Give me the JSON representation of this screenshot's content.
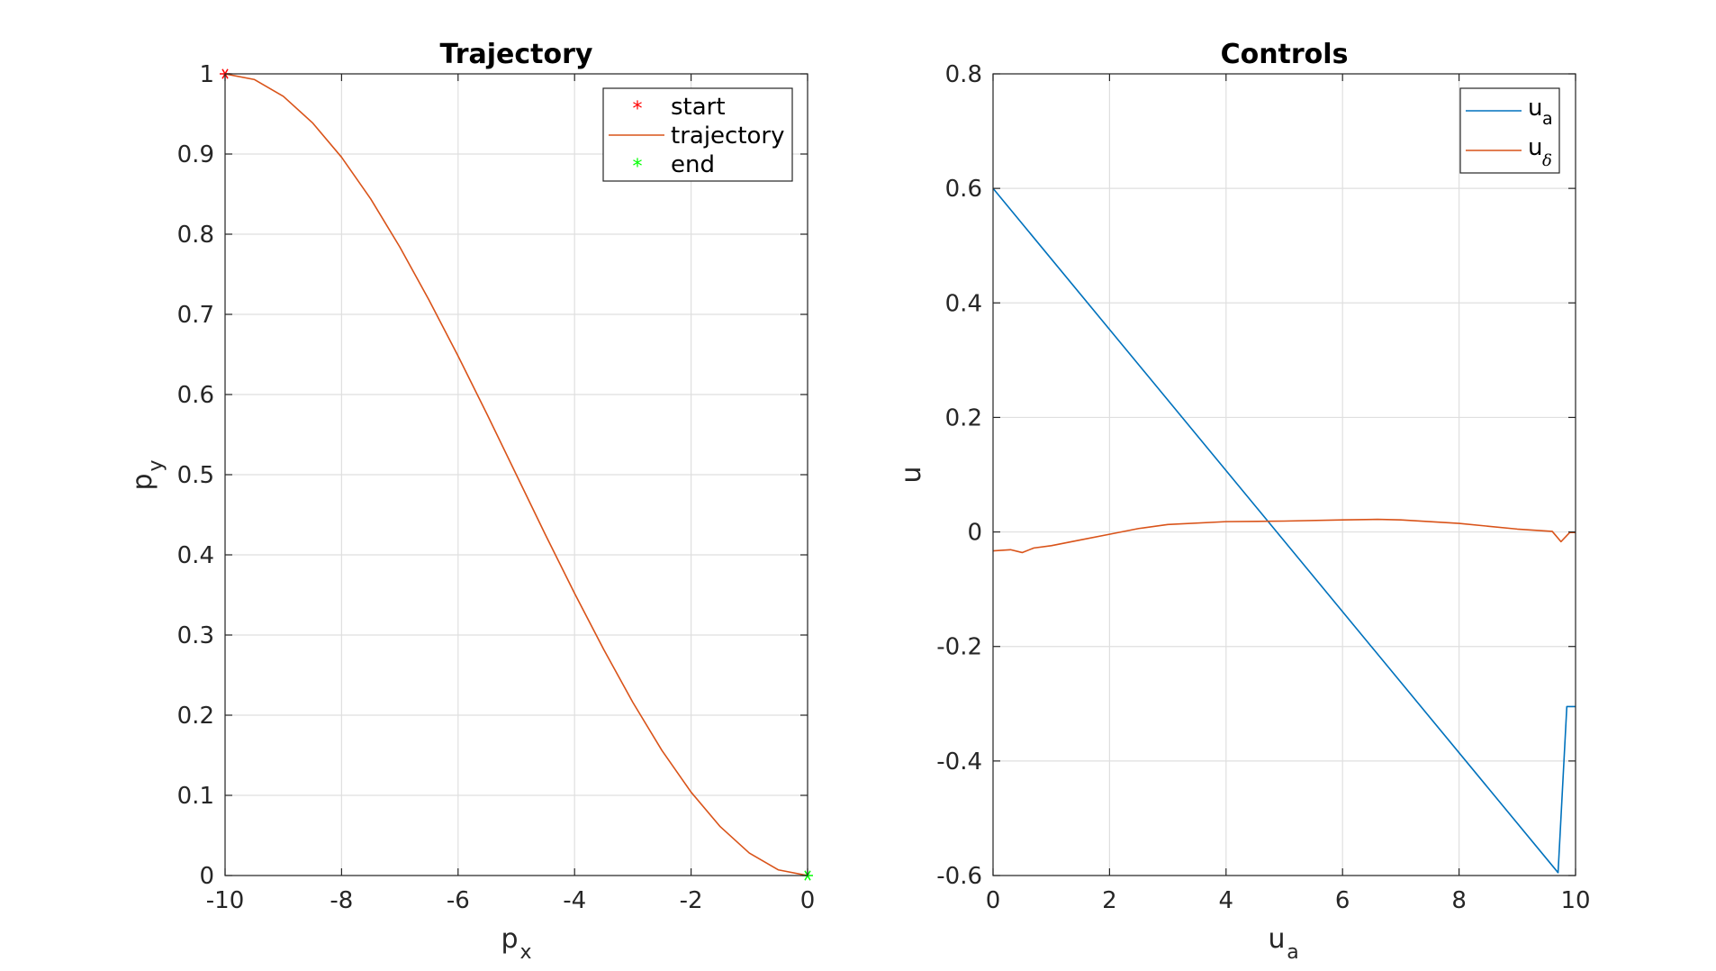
{
  "colors": {
    "blue": "#0072BD",
    "orange": "#D95319",
    "red": "#FF0000",
    "green": "#00FF00"
  },
  "chart_data": [
    {
      "type": "line",
      "title": "Trajectory",
      "xlabel": {
        "base": "p",
        "sub": "x"
      },
      "ylabel": {
        "base": "p",
        "sub": "y"
      },
      "xlim": [
        -10,
        0
      ],
      "ylim": [
        0,
        1
      ],
      "xticks": [
        "-10",
        "-8",
        "-6",
        "-4",
        "-2",
        "0"
      ],
      "yticks": [
        "0",
        "0.1",
        "0.2",
        "0.3",
        "0.4",
        "0.5",
        "0.6",
        "0.7",
        "0.8",
        "0.9",
        "1"
      ],
      "grid": true,
      "legend_location": "top-right",
      "series": [
        {
          "name": "start",
          "marker": "asterisk",
          "color": "#FF0000",
          "x": [
            -10
          ],
          "y": [
            1
          ]
        },
        {
          "name": "trajectory",
          "color": "#D95319",
          "x": [
            -10,
            -9.5,
            -9,
            -8.5,
            -8,
            -7.5,
            -7,
            -6.5,
            -6,
            -5.5,
            -5,
            -4.5,
            -4,
            -3.5,
            -3,
            -2.5,
            -2,
            -1.5,
            -1,
            -0.5,
            0
          ],
          "y": [
            1,
            0.993,
            0.972,
            0.939,
            0.896,
            0.844,
            0.784,
            0.718,
            0.648,
            0.575,
            0.5,
            0.425,
            0.352,
            0.282,
            0.216,
            0.156,
            0.104,
            0.061,
            0.028,
            0.007,
            0
          ]
        },
        {
          "name": "end",
          "marker": "asterisk",
          "color": "#00FF00",
          "x": [
            0
          ],
          "y": [
            0
          ]
        }
      ]
    },
    {
      "type": "line",
      "title": "Controls",
      "xlabel": {
        "base": "u",
        "sub": "a"
      },
      "ylabel": {
        "base": "u",
        "sub": ""
      },
      "xlim": [
        0,
        10
      ],
      "ylim": [
        -0.6,
        0.8
      ],
      "xticks": [
        "0",
        "2",
        "4",
        "6",
        "8",
        "10"
      ],
      "yticks": [
        "-0.6",
        "-0.4",
        "-0.2",
        "0",
        "0.2",
        "0.4",
        "0.6",
        "0.8"
      ],
      "grid": true,
      "legend_location": "top-right",
      "series": [
        {
          "name": "u",
          "sub": "a",
          "color": "#0072BD",
          "x": [
            0,
            9.7,
            9.85,
            10
          ],
          "y": [
            0.6,
            -0.595,
            -0.305,
            -0.305
          ]
        },
        {
          "name": "u",
          "sub": "δ",
          "color": "#D95319",
          "x": [
            0,
            0.3,
            0.5,
            0.7,
            1,
            1.5,
            2,
            2.5,
            3,
            4,
            5,
            6,
            6.6,
            7,
            8,
            9,
            9.6,
            9.75,
            9.9,
            10
          ],
          "y": [
            -0.033,
            -0.031,
            -0.036,
            -0.028,
            -0.024,
            -0.014,
            -0.004,
            0.006,
            0.013,
            0.018,
            0.019,
            0.021,
            0.022,
            0.021,
            0.015,
            0.005,
            0.001,
            -0.017,
            -0.001,
            -0.001
          ]
        }
      ]
    }
  ]
}
